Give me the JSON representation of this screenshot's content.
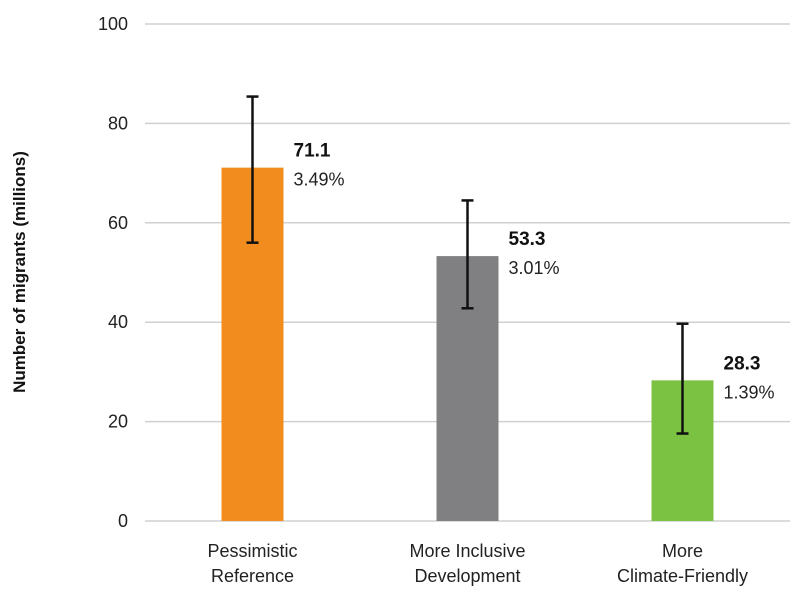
{
  "chart_data": {
    "type": "bar",
    "ylabel": "Number of migrants (millions)",
    "xlabel": "",
    "ylim": [
      0,
      100
    ],
    "yticks": [
      0,
      20,
      40,
      60,
      80,
      100
    ],
    "grid": true,
    "categories": [
      [
        "Pessimistic",
        "Reference"
      ],
      [
        "More Inclusive",
        "Development"
      ],
      [
        "More",
        "Climate-Friendly"
      ]
    ],
    "values": [
      71.1,
      53.3,
      28.3
    ],
    "value_labels": [
      "71.1",
      "53.3",
      "28.3"
    ],
    "percent_labels": [
      "3.49%",
      "3.01%",
      "1.39%"
    ],
    "error_low": [
      56.0,
      42.8,
      17.6
    ],
    "error_high": [
      85.4,
      64.5,
      39.7
    ],
    "colors": [
      "#f28c1e",
      "#808083",
      "#7cc242"
    ]
  }
}
